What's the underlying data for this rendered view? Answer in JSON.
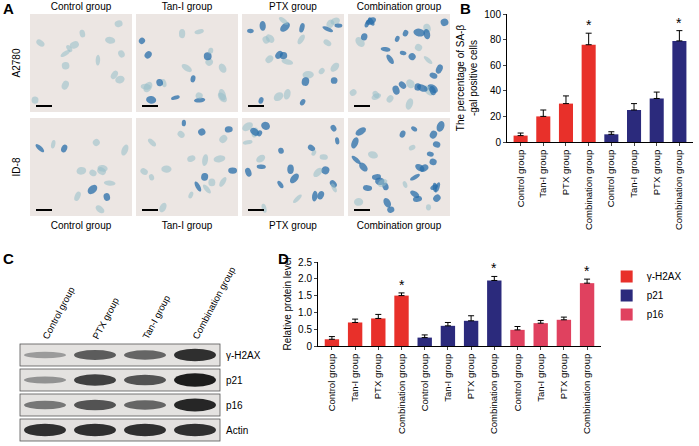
{
  "chart_data": [
    {
      "panel": "B",
      "type": "bar",
      "categories": [
        "Control group",
        "Tan-I group",
        "PTX group",
        "Combination group",
        "Control group",
        "Tan-I group",
        "PTX group",
        "Combination group"
      ],
      "values": [
        5,
        20,
        30,
        76,
        6,
        25,
        34,
        79
      ],
      "errors": [
        2,
        5,
        6,
        9,
        2,
        5,
        5,
        8
      ],
      "colors": [
        "#e8302a",
        "#e8302a",
        "#e8302a",
        "#e8302a",
        "#2b2a7c",
        "#2b2a7c",
        "#2b2a7c",
        "#2b2a7c"
      ],
      "y_label": [
        "The percentage of SA-β",
        "-gal positive cells"
      ],
      "ylim": [
        0,
        100
      ],
      "yticks": [
        0,
        20,
        40,
        60,
        80,
        100
      ],
      "grid": false,
      "annotations": [
        {
          "text": "*",
          "x": 3
        },
        {
          "text": "*",
          "x": 7
        }
      ]
    },
    {
      "panel": "D",
      "type": "bar",
      "categories": [
        "Control group",
        "Tan-I group",
        "PTX group",
        "Combination group",
        "Control group",
        "Tan-I group",
        "PTX group",
        "Combination group",
        "Control group",
        "Tan-I group",
        "PTX group",
        "Combination group"
      ],
      "series": [
        {
          "name": "γ-H2AX",
          "color": "#e8302a",
          "values": [
            0.2,
            0.7,
            0.82,
            1.5,
            null,
            null,
            null,
            null,
            null,
            null,
            null,
            null
          ],
          "errors": [
            0.08,
            0.1,
            0.12,
            0.08,
            null,
            null,
            null,
            null,
            null,
            null,
            null,
            null
          ]
        },
        {
          "name": "p21",
          "color": "#2b2a7c",
          "values": [
            null,
            null,
            null,
            null,
            0.25,
            0.6,
            0.75,
            1.95,
            null,
            null,
            null,
            null
          ],
          "errors": [
            null,
            null,
            null,
            null,
            0.08,
            0.1,
            0.15,
            0.12,
            null,
            null,
            null,
            null
          ]
        },
        {
          "name": "p16",
          "color": "#e0415f",
          "values": [
            null,
            null,
            null,
            null,
            null,
            null,
            null,
            null,
            0.48,
            0.68,
            0.78,
            1.87
          ],
          "errors": [
            null,
            null,
            null,
            null,
            null,
            null,
            null,
            null,
            0.1,
            0.08,
            0.08,
            0.12
          ]
        }
      ],
      "y_label": [
        "Relative protein level"
      ],
      "ylim": [
        0,
        2.5
      ],
      "yticks": [
        0,
        0.5,
        {
          "value": 1,
          "label": "1.0"
        },
        1.5,
        {
          "value": 2,
          "label": "2.0"
        },
        2.5
      ],
      "grid": false,
      "legend": "right",
      "annotations": [
        {
          "text": "*",
          "x": 3
        },
        {
          "text": "*",
          "x": 7
        },
        {
          "text": "*",
          "x": 11
        }
      ]
    }
  ],
  "micrographs": {
    "panel": "A",
    "columns": [
      "Control group",
      "Tan-I group",
      "PTX group",
      "Combination group"
    ],
    "rows": [
      "A2780",
      "ID-8"
    ]
  },
  "western_blot": {
    "panel": "C",
    "lanes": [
      "Control group",
      "PTX group",
      "Tan-I group",
      "Combination group"
    ],
    "bands": [
      "γ-H2AX",
      "p21",
      "p16",
      "Actin"
    ]
  }
}
